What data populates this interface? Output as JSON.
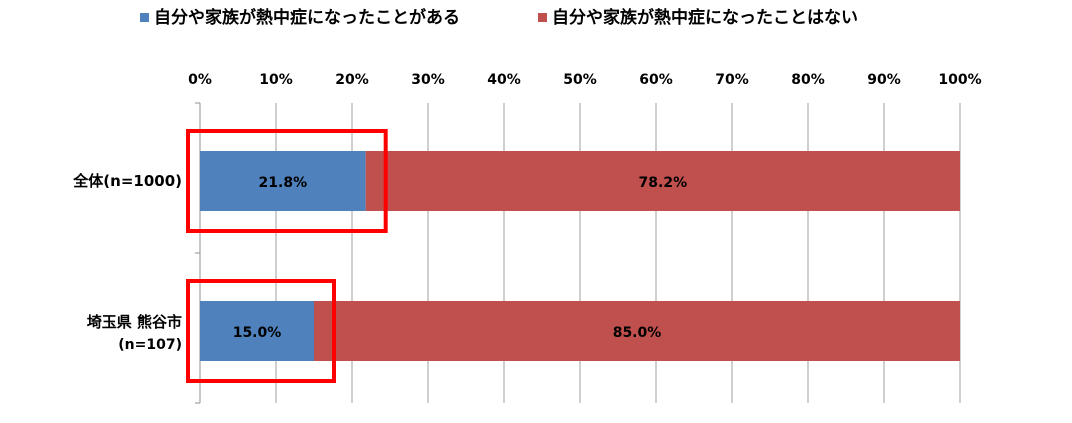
{
  "chart_data": {
    "type": "bar",
    "orientation": "horizontal",
    "stacked": true,
    "percent_stacked": true,
    "title": "",
    "xlabel": "",
    "ylabel": "",
    "xlim": [
      0,
      100
    ],
    "grid": true,
    "legend_position": "top",
    "x_ticks": [
      "0%",
      "10%",
      "20%",
      "30%",
      "40%",
      "50%",
      "60%",
      "70%",
      "80%",
      "90%",
      "100%"
    ],
    "categories": [
      {
        "name": "全体",
        "sub": "(n=1000)"
      },
      {
        "name": "埼玉県 熊谷市",
        "sub": "(n=107)"
      }
    ],
    "series": [
      {
        "name": "自分や家族が熱中症になったことがある",
        "color": "#4F81BD",
        "values": [
          21.8,
          15.0
        ],
        "labels": [
          "21.8%",
          "15.0%"
        ]
      },
      {
        "name": "自分や家族が熱中症になったことはない",
        "color": "#C0504D",
        "values": [
          78.2,
          85.0
        ],
        "labels": [
          "78.2%",
          "85.0%"
        ]
      }
    ],
    "highlight_color": "#FF0000"
  }
}
